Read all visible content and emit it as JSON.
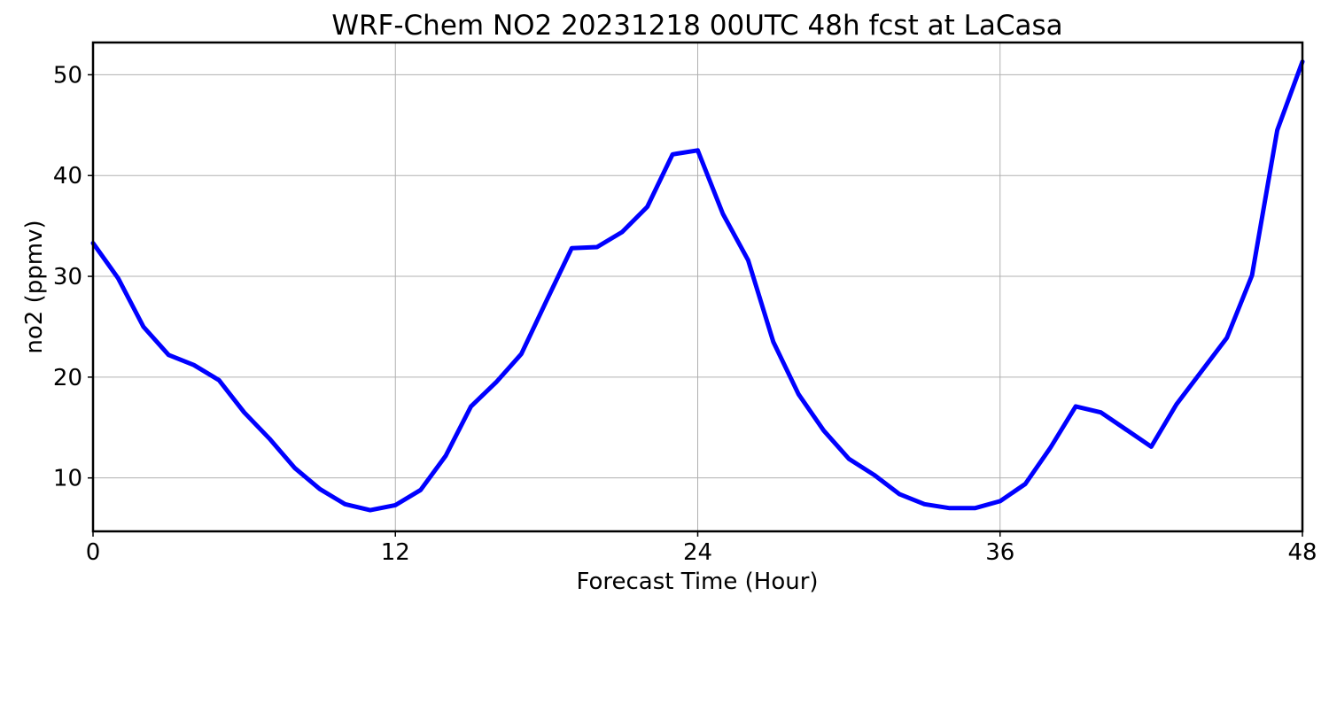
{
  "chart_data": {
    "type": "line",
    "title": "WRF-Chem NO2  20231218 00UTC 48h fcst at LaCasa",
    "xlabel": "Forecast Time (Hour)",
    "ylabel": "no2  (ppmv)",
    "xlim": [
      0,
      48
    ],
    "ylim": [
      4.7,
      53.2
    ],
    "xticks": [
      0,
      12,
      24,
      36,
      48
    ],
    "yticks": [
      10,
      20,
      30,
      40,
      50
    ],
    "grid": true,
    "line_color": "#0000ff",
    "series": [
      {
        "x": [
          0,
          1,
          2,
          3,
          4,
          5,
          6,
          7,
          8,
          9,
          10,
          11,
          12,
          13,
          14,
          15,
          16,
          17,
          18,
          19,
          20,
          21,
          22,
          23,
          24,
          25,
          26,
          27,
          28,
          29,
          30,
          31,
          32,
          33,
          34,
          35,
          36,
          37,
          38,
          39,
          40,
          41,
          42,
          43,
          44,
          45,
          46,
          47,
          48
        ],
        "values": [
          33.3,
          29.8,
          25.0,
          22.2,
          21.2,
          19.7,
          16.5,
          13.9,
          11.0,
          8.9,
          7.4,
          6.8,
          7.3,
          8.8,
          12.2,
          17.1,
          19.5,
          22.3,
          27.6,
          32.8,
          32.9,
          34.4,
          36.9,
          42.1,
          42.5,
          36.2,
          31.6,
          23.5,
          18.3,
          14.7,
          11.9,
          10.3,
          8.4,
          7.4,
          7.0,
          7.0,
          7.7,
          9.4,
          13.0,
          17.1,
          16.5,
          14.8,
          13.1,
          17.3,
          20.6,
          23.9,
          30.1,
          44.5,
          51.3
        ]
      }
    ]
  }
}
